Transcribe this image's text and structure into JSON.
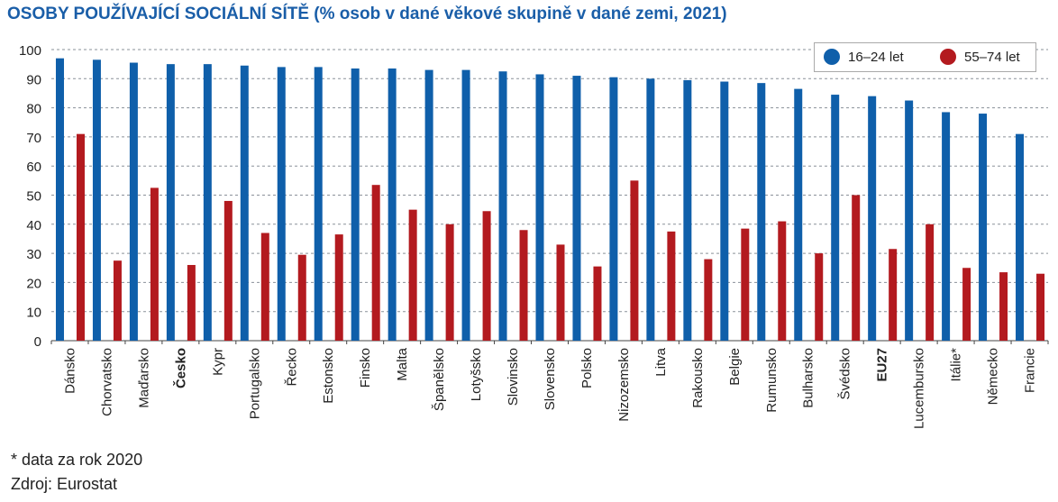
{
  "title_main": "OSOBY POUŽÍVAJÍCÍ SOCIÁLNÍ SÍTĚ",
  "title_sub": "(% osob v dané věkové skupině v dané zemi, 2021)",
  "footnote": "* data za rok 2020",
  "source": "Zdroj: Eurostat",
  "colors": {
    "series1": "#0f5faa",
    "series2": "#b31a1f",
    "grid": "#8a9199"
  },
  "chart_data": {
    "type": "bar",
    "title": "OSOBY POUŽÍVAJÍCÍ SOCIÁLNÍ SÍTĚ (% osob v dané věkové skupině v dané zemi, 2021)",
    "xlabel": "",
    "ylabel": "",
    "ylim": [
      0,
      100
    ],
    "yticks": [
      0,
      10,
      20,
      30,
      40,
      50,
      60,
      70,
      80,
      90,
      100
    ],
    "grid": "horizontal dashed",
    "legend": "top-right",
    "categories": [
      "Dánsko",
      "Chorvatsko",
      "Maďarsko",
      "Česko",
      "Kypr",
      "Portugalsko",
      "Řecko",
      "Estonsko",
      "Finsko",
      "Malta",
      "Španělsko",
      "Lotyšsko",
      "Slovinsko",
      "Slovensko",
      "Polsko",
      "Nizozemsko",
      "Litva",
      "Rakousko",
      "Belgie",
      "Rumunsko",
      "Bulharsko",
      "Švédsko",
      "EU27",
      "Lucembursko",
      "Itálie*",
      "Německo",
      "Francie"
    ],
    "bold_categories": [
      "Česko",
      "EU27"
    ],
    "series": [
      {
        "name": "16–24 let",
        "values": [
          97,
          96.5,
          95.5,
          95,
          95,
          94.5,
          94,
          94,
          93.5,
          93.5,
          93,
          93,
          92.5,
          91.5,
          91,
          90.5,
          90,
          89.5,
          89,
          88.5,
          86.5,
          84.5,
          84,
          82.5,
          78.5,
          78,
          71
        ]
      },
      {
        "name": "55–74 let",
        "values": [
          71,
          27.5,
          52.5,
          26,
          48,
          37,
          29.5,
          36.5,
          53.5,
          45,
          40,
          44.5,
          38,
          33,
          25.5,
          55,
          37.5,
          28,
          38.5,
          41,
          30,
          50,
          31.5,
          40,
          25,
          23.5,
          23
        ]
      }
    ]
  }
}
